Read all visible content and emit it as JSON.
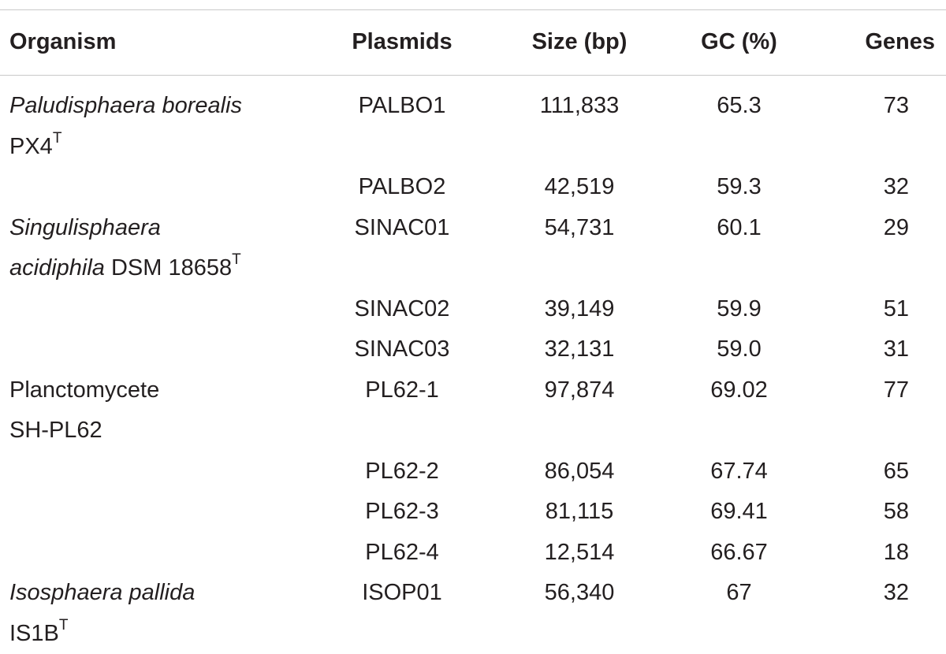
{
  "table": {
    "columns": [
      "Organism",
      "Plasmids",
      "Size (bp)",
      "GC (%)",
      "Genes"
    ],
    "rows": [
      {
        "organism": [
          [
            {
              "text": "Paludisphaera borealis",
              "italic": true
            }
          ],
          [
            {
              "text": "PX4"
            },
            {
              "text": "T",
              "sup": true
            }
          ]
        ],
        "cells": [
          "PALBO1",
          "111,833",
          "65.3",
          "73"
        ]
      },
      {
        "cells": [
          "PALBO2",
          "42,519",
          "59.3",
          "32"
        ]
      },
      {
        "organism": [
          [
            {
              "text": "Singulisphaera",
              "italic": true
            }
          ],
          [
            {
              "text": "acidiphila",
              "italic": true
            },
            {
              "text": " DSM 18658"
            },
            {
              "text": "T",
              "sup": true
            }
          ]
        ],
        "cells": [
          "SINAC01",
          "54,731",
          "60.1",
          "29"
        ]
      },
      {
        "cells": [
          "SINAC02",
          "39,149",
          "59.9",
          "51"
        ]
      },
      {
        "cells": [
          "SINAC03",
          "32,131",
          "59.0",
          "31"
        ]
      },
      {
        "organism": [
          [
            {
              "text": "Planctomycete"
            }
          ],
          [
            {
              "text": "SH-PL62"
            }
          ]
        ],
        "cells": [
          "PL62-1",
          "97,874",
          "69.02",
          "77"
        ]
      },
      {
        "cells": [
          "PL62-2",
          "86,054",
          "67.74",
          "65"
        ]
      },
      {
        "cells": [
          "PL62-3",
          "81,115",
          "69.41",
          "58"
        ]
      },
      {
        "cells": [
          "PL62-4",
          "12,514",
          "66.67",
          "18"
        ]
      },
      {
        "organism": [
          [
            {
              "text": "Isosphaera pallida",
              "italic": true
            }
          ],
          [
            {
              "text": "IS1B"
            },
            {
              "text": "T",
              "sup": true
            }
          ]
        ],
        "cells": [
          "ISOP01",
          "56,340",
          "67",
          "32"
        ]
      }
    ]
  }
}
